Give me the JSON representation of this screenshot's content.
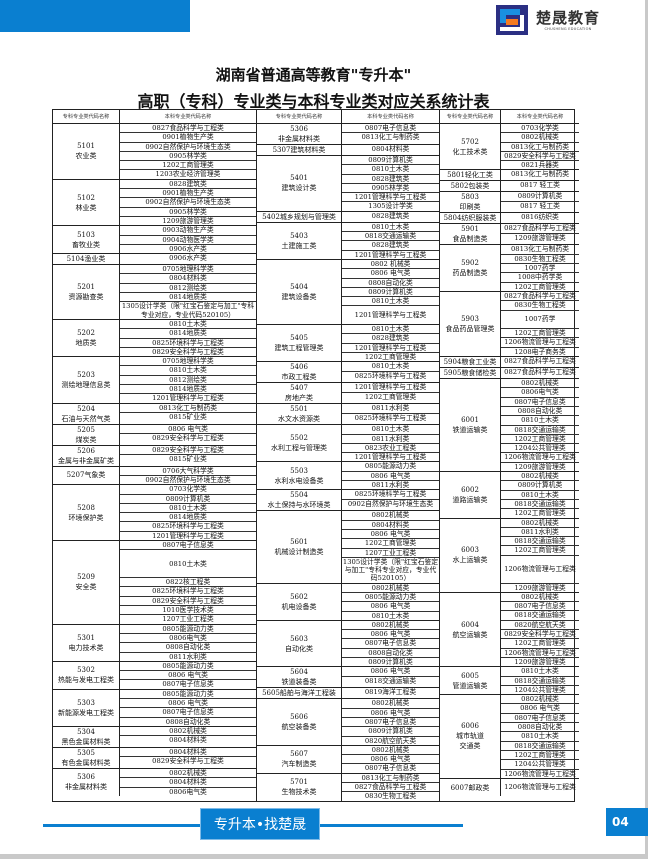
{
  "brand": {
    "name_cn": "楚晟教育",
    "name_en": "CHUSHENG EDUCATION",
    "accent_color": "#0a7fd0",
    "logo_orange": "#f47a20",
    "logo_navy": "#2b2f83"
  },
  "title": {
    "line1": "湖南省普通高等教育\"专升本\"",
    "line2": "高职（专科）专业类与本科专业类对应关系统计表"
  },
  "table": {
    "headers": [
      "专科专业类代码名称",
      "本科专业类代码名称",
      "专科专业类代码名称",
      "本科专业类代码名称",
      "专科专业类代码名称",
      "本科专业类代码名称"
    ],
    "sections": [
      {
        "groups": [
          {
            "key": "5101",
            "label": [
              "5101",
              "农业类"
            ],
            "majors": [
              "0827食品科学与工程类",
              "0901植物生产类",
              "0902自然保护与环境生态类",
              "0905林学类",
              "1202工商管理类",
              "1203农业经济管理类"
            ]
          },
          {
            "key": "5102",
            "label": [
              "5102",
              "林业类"
            ],
            "majors": [
              "0828建筑类",
              "0901植物生产类",
              "0902自然保护与环境生态类",
              "0905林学类",
              "1209旅游管理类"
            ]
          },
          {
            "key": "5103",
            "label": [
              "5103",
              "畜牧业类"
            ],
            "majors": [
              "0903动物生产类",
              "0904动物医学类",
              "0906水产类"
            ]
          },
          {
            "key": "5104",
            "label": [
              "5104渔业类"
            ],
            "majors": [
              "0906水产类"
            ]
          },
          {
            "key": "5201",
            "label": [
              "5201",
              "资源勘查类"
            ],
            "majors": [
              "0705地理科学类",
              "0804材料类",
              "0812测绘类",
              "0814地质类",
              "1305设计学类（限\"红宝石鉴定与加工\"专科专业对应，专业代码520105）"
            ]
          },
          {
            "key": "5202",
            "label": [
              "5202",
              "地质类"
            ],
            "majors": [
              "0810土木类",
              "0814地质类",
              "0825环境科学与工程类",
              "0829安全科学与工程类"
            ]
          },
          {
            "key": "5203",
            "label": [
              "5203",
              "测绘地理信息类"
            ],
            "majors": [
              "0705地理科学类",
              "0810土木类",
              "0812测绘类",
              "0814地质类",
              "1201管理科学与工程类"
            ]
          },
          {
            "key": "5204",
            "label": [
              "5204",
              "石油与天然气类"
            ],
            "majors": [
              "0813化工与制药类",
              "0815矿业类"
            ]
          },
          {
            "key": "5205",
            "label": [
              "5205",
              "煤炭类"
            ],
            "majors": [
              "0806 电气类",
              "0829安全科学与工程类"
            ]
          },
          {
            "key": "5206",
            "label": [
              "5206",
              "金属与非金属矿类"
            ],
            "majors": [
              "0829安全科学与工程类",
              "0815矿业类"
            ]
          },
          {
            "key": "5207",
            "label": [
              "5207气象类"
            ],
            "majors": [
              "0706大气科学类",
              "0902自然保护与环境生态类"
            ]
          },
          {
            "key": "5208",
            "label": [
              "5208",
              "环境保护类"
            ],
            "majors": [
              "0703化学类",
              "0809计算机类",
              "0810土木类",
              "0814地质类",
              "0825环境科学与工程类",
              "1201管理科学与工程类"
            ]
          },
          {
            "key": "5209",
            "label": [
              "5209",
              "安全类"
            ],
            "majors": [
              "0807电子信息类",
              "0810土木类",
              "0822核工程类",
              "0825环境科学与工程类",
              "0829安全科学与工程类",
              "1010医学技术类",
              "1207工业工程类"
            ]
          },
          {
            "key": "5301",
            "label": [
              "5301",
              "电力技术类"
            ],
            "majors": [
              "0805能源动力类",
              "0806电气类",
              "0808自动化类",
              "0811水利类"
            ]
          },
          {
            "key": "5302",
            "label": [
              "5302",
              "热能与发电工程类"
            ],
            "majors": [
              "0805能源动力类",
              "0806 电气类",
              "0807电子信息类"
            ]
          },
          {
            "key": "5303",
            "label": [
              "5303",
              "新能源发电工程类"
            ],
            "majors": [
              "0805能源动力类",
              "0806 电气类",
              "0807电子信息类",
              "0808自动化类"
            ]
          },
          {
            "key": "5304",
            "label": [
              "5304",
              "黑色金属材料类"
            ],
            "majors": [
              "0802机械类",
              "0804材料类"
            ]
          },
          {
            "key": "5305",
            "label": [
              "5305",
              "有色金属材料类"
            ],
            "majors": [
              "0804材料类",
              "0829安全科学与工程类"
            ]
          },
          {
            "key": "5306a",
            "label": [
              "5306",
              "非金属材料类"
            ],
            "majors": [
              "0802机械类",
              "0804材料类",
              "0806电气类"
            ]
          }
        ]
      },
      {
        "groups": [
          {
            "key": "5306",
            "label": [
              "5306",
              "非金属材料类"
            ],
            "majors": [
              "0807电子信息类",
              "0813化工与制药类"
            ]
          },
          {
            "key": "5307",
            "label": [
              "5307建筑材料类"
            ],
            "majors": [
              "0804材料类"
            ]
          },
          {
            "key": "5401",
            "label": [
              "5401",
              "建筑设计类"
            ],
            "majors": [
              "0809计算机类",
              "0810土木类",
              "0828建筑类",
              "0905林学类",
              "1201管理科学与工程类",
              "1305设计学类"
            ]
          },
          {
            "key": "5402",
            "label": [
              "5402城乡规划与管理类"
            ],
            "majors": [
              "0828建筑类"
            ]
          },
          {
            "key": "5403",
            "label": [
              "5403",
              "土建施工类"
            ],
            "majors": [
              "0810土木类",
              "0818交通运输类",
              "0828建筑类",
              "1201管理科学与工程类"
            ]
          },
          {
            "key": "5404",
            "label": [
              "5404",
              "建筑设备类"
            ],
            "majors": [
              "0802 机械类",
              "0806 电气类",
              "0808自动化类",
              "0809计算机类",
              "0810土木类",
              "1201管理科学与工程类"
            ]
          },
          {
            "key": "5405",
            "label": [
              "5405",
              "建筑工程管理类"
            ],
            "majors": [
              "0810土木类",
              "0828建筑类",
              "1201管理科学与工程类",
              "1202工商管理类"
            ]
          },
          {
            "key": "5406",
            "label": [
              "5406",
              "市政工程类"
            ],
            "majors": [
              "0810土木类",
              "0825环境科学与工程类"
            ]
          },
          {
            "key": "5407",
            "label": [
              "5407",
              "房地产类"
            ],
            "majors": [
              "1201管理科学与工程类",
              "1202工商管理类"
            ]
          },
          {
            "key": "5501",
            "label": [
              "5501",
              "水文水资源类"
            ],
            "majors": [
              "0811水利类",
              "0825环境科学与工程类"
            ]
          },
          {
            "key": "5502",
            "label": [
              "5502",
              "水利工程与管理类"
            ],
            "majors": [
              "0810土木类",
              "0811水利类",
              "0823农业工程类",
              "1201管理科学与工程类"
            ]
          },
          {
            "key": "5503",
            "label": [
              "5503",
              "水利水电设备类"
            ],
            "majors": [
              "0805能源动力类",
              "0806 电气类",
              "0811水利类"
            ]
          },
          {
            "key": "5504",
            "label": [
              "5504",
              "水土保持与水环境类"
            ],
            "majors": [
              "0825环境科学与工程类",
              "0902自然保护与环境生态类"
            ]
          },
          {
            "key": "5601",
            "label": [
              "5601",
              "机械设计制造类"
            ],
            "majors": [
              "0802机械类",
              "0804材料类",
              "0806 电气类",
              "1202工商管理类",
              "1207工业工程类",
              "1305设计学类（限\"红宝石鉴定与加工\"专科专业对应，专业代码520105）"
            ]
          },
          {
            "key": "5602",
            "label": [
              "5602",
              "机电设备类"
            ],
            "majors": [
              "0802机械类",
              "0805能源动力类",
              "0806 电气类",
              "0810土木类"
            ]
          },
          {
            "key": "5603",
            "label": [
              "5603",
              "自动化类"
            ],
            "majors": [
              "0802机械类",
              "0806 电气类",
              "0807电子信息类",
              "0808自动化类",
              "0809计算机类"
            ]
          },
          {
            "key": "5604",
            "label": [
              "5604",
              "铁道装备类"
            ],
            "majors": [
              "0806 电气类",
              "0818交通运输类"
            ]
          },
          {
            "key": "5605",
            "label": [
              "5605船舶与海洋工程装"
            ],
            "majors": [
              "0819海洋工程类"
            ]
          },
          {
            "key": "5606",
            "label": [
              "5606",
              "航空装备类"
            ],
            "majors": [
              "0802机械类",
              "0806 电气类",
              "0807电子信息类",
              "0809计算机类",
              "0820航空航天类"
            ]
          },
          {
            "key": "5607",
            "label": [
              "5607",
              "汽车制造类"
            ],
            "majors": [
              "0802机械类",
              "0806 电气类",
              "0807电子信息类"
            ]
          },
          {
            "key": "5701",
            "label": [
              "5701",
              "生物技术类"
            ],
            "majors": [
              "0813化工与制药类",
              "0827食品科学与工程类",
              "0830生物工程类"
            ]
          }
        ]
      },
      {
        "groups": [
          {
            "key": "5702",
            "label": [
              "5702",
              "化工技术类"
            ],
            "majors": [
              "0703化学类",
              "0802机械类",
              "0813化工与制药类",
              "0829安全科学与工程类",
              "0821兵器类"
            ]
          },
          {
            "key": "5801",
            "label": [
              "5801轻化工类"
            ],
            "majors": [
              "0813化工与制药类"
            ]
          },
          {
            "key": "5802",
            "label": [
              "5802包装类"
            ],
            "majors": [
              "0817 轻工类"
            ]
          },
          {
            "key": "5803",
            "label": [
              "5803",
              "印刷类"
            ],
            "majors": [
              "0809计算机类",
              "0817 轻工类"
            ]
          },
          {
            "key": "5804",
            "label": [
              "5804纺织服装类"
            ],
            "majors": [
              "0816纺织类"
            ]
          },
          {
            "key": "5901",
            "label": [
              "5901",
              "食品制造类"
            ],
            "majors": [
              "0827食品科学与工程类",
              "1209旅游管理类"
            ]
          },
          {
            "key": "5902",
            "label": [
              "5902",
              "药品制造类"
            ],
            "majors": [
              "0813化工与制药类",
              "0830生物工程类",
              "1007药学",
              "1008中药学类",
              "1202工商管理类"
            ]
          },
          {
            "key": "5903",
            "label": [
              "5903",
              "食品药品管理类"
            ],
            "majors": [
              "0827食品科学与工程类",
              "0830生物工程类",
              "1007药学",
              "1202工商管理类",
              "1206物流管理与工程类",
              "1208电子商务类"
            ]
          },
          {
            "key": "5904",
            "label": [
              "5904粮食工业类"
            ],
            "majors": [
              "0827食品科学与工程类"
            ]
          },
          {
            "key": "5905",
            "label": [
              "5905粮食储检类"
            ],
            "majors": [
              "0827食品科学与工程类"
            ]
          },
          {
            "key": "6001",
            "label": [
              "6001",
              "铁道运输类"
            ],
            "majors": [
              "0802机械类",
              "0806电气类",
              "0807电子信息类",
              "0808自动化类",
              "0810土木类",
              "0818交通运输类",
              "1202工商管理类",
              "1204公共管理类",
              "1206物流管理与工程类",
              "1209旅游管理类"
            ]
          },
          {
            "key": "6002",
            "label": [
              "6002",
              "道路运输类"
            ],
            "majors": [
              "0802机械类",
              "0809计算机类",
              "0810土木类",
              "0818交通运输类",
              "1202工商管理类"
            ]
          },
          {
            "key": "6003",
            "label": [
              "6003",
              "水上运输类"
            ],
            "majors": [
              "0802机械类",
              "0811水利类",
              "0818交通运输类",
              "1202工商管理类",
              "1206物流管理与工程类",
              "1209旅游管理类"
            ]
          },
          {
            "key": "6004",
            "label": [
              "6004",
              "航空运输类"
            ],
            "majors": [
              "0802机械类",
              "0807电子信息类",
              "0818交通运输类",
              "0820航空航天类",
              "0829安全科学与工程类",
              "1202工商管理类",
              "1206物流管理与工程类",
              "1209旅游管理类"
            ]
          },
          {
            "key": "6005",
            "label": [
              "6005",
              "管道运输类"
            ],
            "majors": [
              "0810土木类",
              "0818交通运输类",
              "1204公共管理类"
            ]
          },
          {
            "key": "6006",
            "label": [
              "6006",
              "城市轨道",
              "交通类"
            ],
            "majors": [
              "0802机械类",
              "0806 电气类",
              "0807电子信息类",
              "0808自动化类",
              "0810土木类",
              "0818交通运输类",
              "1202工商管理类",
              "1204公共管理类",
              "1206物流管理与工程类"
            ]
          },
          {
            "key": "6007",
            "label": [
              "6007邮政类"
            ],
            "majors": [
              "1206物流管理与工程类"
            ]
          }
        ]
      }
    ]
  },
  "footer": {
    "slogan": "专升本•找楚晟",
    "page_number": "04"
  }
}
